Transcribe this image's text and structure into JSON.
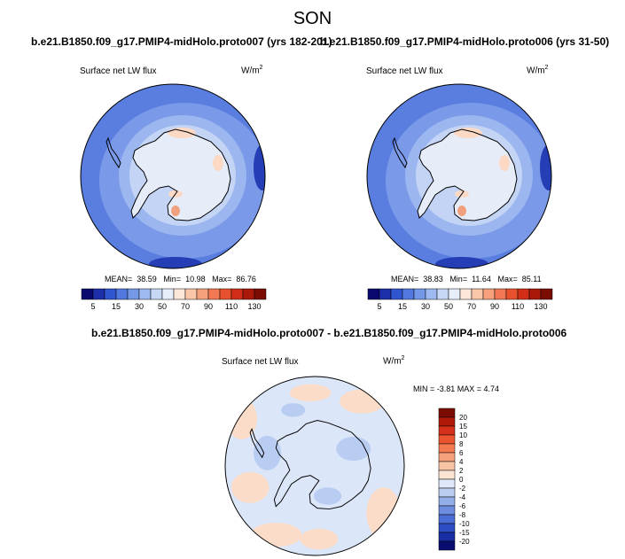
{
  "title": "SON",
  "panels": [
    {
      "case": "b.e21.B1850.f09_g17.PMIP4-midHolo.proto007 (yrs 182-201)",
      "variable": "Surface net LW flux",
      "units_base": "W/m",
      "units_exp": "2",
      "mean_label": "MEAN=",
      "mean": "38.59",
      "min_label": "Min=",
      "min": "10.98",
      "max_label": "Max=",
      "max": "86.76"
    },
    {
      "case": "b.e21.B1850.f09_g17.PMIP4-midHolo.proto006 (yrs 31-50)",
      "variable": "Surface net LW flux",
      "units_base": "W/m",
      "units_exp": "2",
      "mean_label": "MEAN=",
      "mean": "38.83",
      "min_label": "Min=",
      "min": "11.64",
      "max_label": "Max=",
      "max": "85.11"
    }
  ],
  "diff": {
    "title": "b.e21.B1850.f09_g17.PMIP4-midHolo.proto007 - b.e21.B1850.f09_g17.PMIP4-midHolo.proto006",
    "variable": "Surface net LW flux",
    "units_base": "W/m",
    "units_exp": "2",
    "minmax": "MIN = -3.81 MAX =  4.74"
  },
  "colorbar_main": {
    "labels": [
      "5",
      "15",
      "30",
      "50",
      "70",
      "90",
      "110",
      "130"
    ],
    "colors": [
      "#08086e",
      "#1c2ea8",
      "#2f55d0",
      "#5078df",
      "#7597e8",
      "#9ebaf0",
      "#c6d8f6",
      "#e6eefa",
      "#fbe6d8",
      "#f9c6aa",
      "#f6a07c",
      "#f17853",
      "#e8512e",
      "#d22d16",
      "#a91808",
      "#7a0c04"
    ]
  },
  "colorbar_diff": {
    "labels": [
      "20",
      "15",
      "10",
      "8",
      "6",
      "4",
      "2",
      "0",
      "-2",
      "-4",
      "-6",
      "-8",
      "-10",
      "-15",
      "-20"
    ],
    "colors": [
      "#7a0c04",
      "#b01808",
      "#d4301a",
      "#ea5530",
      "#f47a52",
      "#f7a17c",
      "#f9c4a6",
      "#fbe4d4",
      "#dfe8f8",
      "#bccdf2",
      "#93aee9",
      "#6d8edf",
      "#4a6ed4",
      "#2c4dc1",
      "#1a2ea3",
      "#0a0d70"
    ]
  },
  "map_colors": {
    "ocean": "#5a7ee0",
    "band_outer": "#7a9ae9",
    "band_mid": "#9cb6f0",
    "band_inner": "#c3d4f5",
    "land": "#e6edf9",
    "warm": "#fbd9c4",
    "cold": "#253db5",
    "diff_base": "#dbe6f8",
    "diff_warm": "#fbdcc8",
    "diff_cool": "#b9cdf2"
  }
}
